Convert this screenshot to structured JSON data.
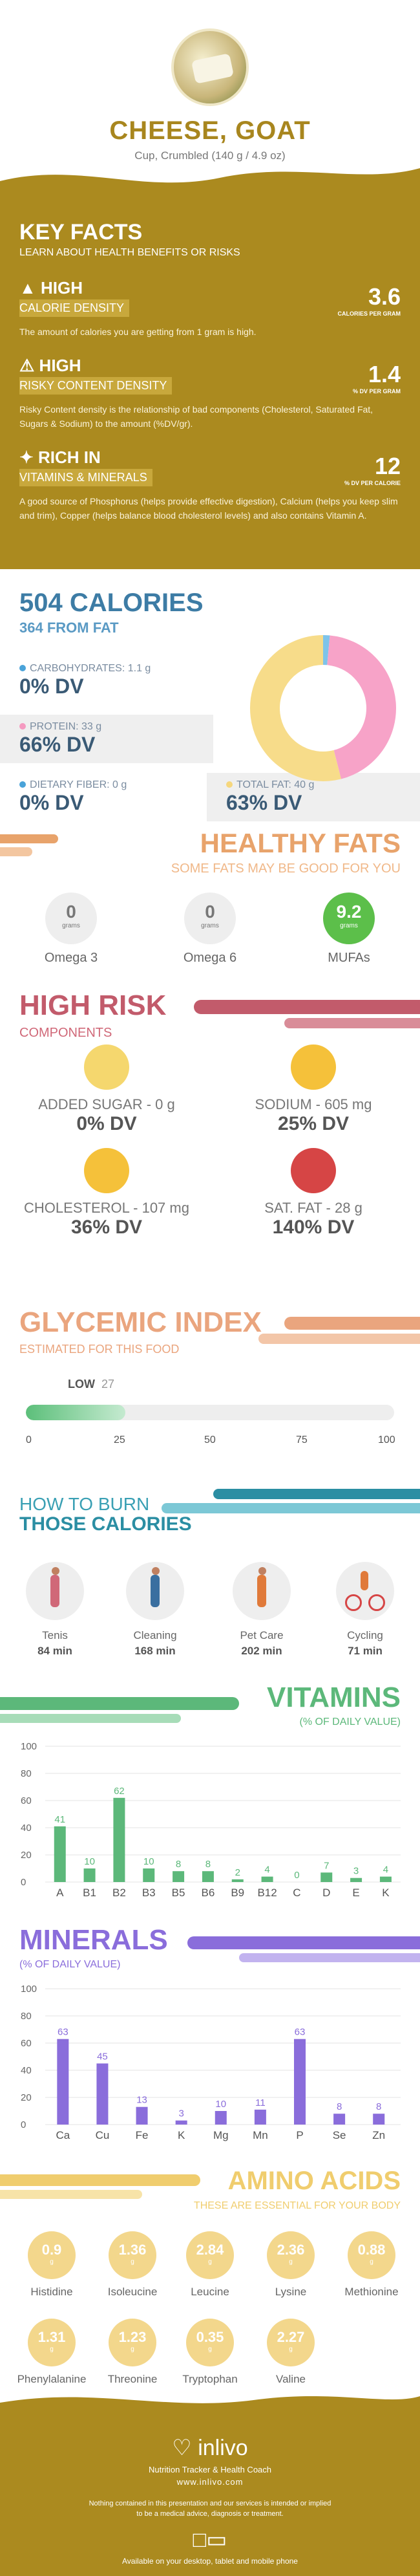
{
  "header": {
    "title": "CHEESE, GOAT",
    "serving": "Cup, Crumbled (140 g / 4.9 oz)"
  },
  "key_facts": {
    "title": "KEY FACTS",
    "subtitle": "LEARN ABOUT HEALTH BENEFITS OR RISKS",
    "items": [
      {
        "level": "HIGH",
        "label": "CALORIE DENSITY",
        "value": "3.6",
        "unit": "CALORIES PER GRAM",
        "icon": "flame-icon",
        "desc": "The amount of calories you are getting from 1 gram is high."
      },
      {
        "level": "HIGH",
        "label": "RISKY CONTENT DENSITY",
        "value": "1.4",
        "unit": "% DV PER GRAM",
        "icon": "warning-icon",
        "desc": "Risky Content density is the relationship of bad components (Cholesterol, Saturated Fat, Sugars & Sodium) to the amount (%DV/gr)."
      },
      {
        "level": "RICH  IN",
        "label": "VITAMINS & MINERALS",
        "value": "12",
        "unit": "% DV PER CALORIE",
        "icon": "leaf-icon",
        "desc": "A good source of Phosphorus (helps provide effective digestion), Calcium (helps you keep slim and trim), Copper (helps balance blood cholesterol levels) and also contains Vitamin A."
      }
    ]
  },
  "calories": {
    "total": "504 CALORIES",
    "from_fat": "364 FROM FAT",
    "macros": [
      {
        "label": "CARBOHYDRATES: 1.1 g",
        "dv": "0% DV",
        "color": "#4aa3d9"
      },
      {
        "label": "PROTEIN: 33 g",
        "dv": "66% DV",
        "color": "#f59ac0"
      },
      {
        "label": "DIETARY FIBER: 0 g",
        "dv": "0% DV",
        "color": "#4aa3d9"
      },
      {
        "label": "TOTAL FAT: 40 g",
        "dv": "63% DV",
        "color": "#f6d77d"
      }
    ],
    "donut": [
      {
        "name": "carbohydrates",
        "value": 1.1,
        "color": "#7ec3ea"
      },
      {
        "name": "protein",
        "value": 33,
        "color": "#f7a3c8"
      },
      {
        "name": "fat",
        "value": 40,
        "color": "#f7dc8a"
      }
    ]
  },
  "healthy_fats": {
    "title": "HEALTHY FATS",
    "subtitle": "SOME FATS MAY BE GOOD FOR YOU",
    "unit": "grams",
    "items": [
      {
        "name": "Omega 3",
        "value": "0",
        "active": false
      },
      {
        "name": "Omega 6",
        "value": "0",
        "active": false
      },
      {
        "name": "MUFAs",
        "value": "9.2",
        "active": true
      }
    ]
  },
  "high_risk": {
    "title": "HIGH RISK",
    "subtitle": "COMPONENTS",
    "items": [
      {
        "label": "ADDED SUGAR - 0 g",
        "dv": "0% DV",
        "color": "#f5d76e",
        "icon": "smiley-happy-icon"
      },
      {
        "label": "SODIUM - 605 mg",
        "dv": "25% DV",
        "color": "#f5c13a",
        "icon": "smiley-neutral-icon"
      },
      {
        "label": "CHOLESTEROL - 107 mg",
        "dv": "36% DV",
        "color": "#f5c13a",
        "icon": "smiley-neutral-icon"
      },
      {
        "label": "SAT. FAT - 28 g",
        "dv": "140% DV",
        "color": "#d64545",
        "icon": "smiley-sad-icon"
      }
    ]
  },
  "glycemic": {
    "title": "GLYCEMIC INDEX",
    "subtitle": "ESTIMATED FOR THIS FOOD",
    "level": "LOW",
    "value": "27",
    "fraction": 0.27,
    "ticks": [
      "0",
      "25",
      "50",
      "75",
      "100"
    ]
  },
  "burn": {
    "title_1": "HOW TO BURN",
    "title_2": "THOSE CALORIES",
    "activities": [
      {
        "name": "Tenis",
        "minutes": "84 min",
        "icon": "tennis-icon"
      },
      {
        "name": "Cleaning",
        "minutes": "168 min",
        "icon": "cleaning-icon"
      },
      {
        "name": "Pet Care",
        "minutes": "202 min",
        "icon": "pet-care-icon"
      },
      {
        "name": "Cycling",
        "minutes": "71 min",
        "icon": "cycling-icon"
      }
    ]
  },
  "vitamins": {
    "title": "VITAMINS",
    "subtitle": "(% OF DAILY VALUE)"
  },
  "minerals": {
    "title": "MINERALS",
    "subtitle": "(% OF DAILY VALUE)"
  },
  "chart_data": [
    {
      "type": "bar",
      "title": "VITAMINS",
      "subtitle": "(% OF DAILY VALUE)",
      "categories": [
        "A",
        "B1",
        "B2",
        "B3",
        "B5",
        "B6",
        "B9",
        "B12",
        "C",
        "D",
        "E",
        "K"
      ],
      "values": [
        41,
        10,
        62,
        10,
        8,
        8,
        2,
        4,
        0,
        7,
        3,
        4
      ],
      "ylim": [
        0,
        100
      ],
      "yticks": [
        0,
        20,
        40,
        60,
        80,
        100
      ],
      "color": "#5cb87a",
      "grid": true
    },
    {
      "type": "bar",
      "title": "MINERALS",
      "subtitle": "(% OF DAILY VALUE)",
      "categories": [
        "Ca",
        "Cu",
        "Fe",
        "K",
        "Mg",
        "Mn",
        "P",
        "Se",
        "Zn"
      ],
      "values": [
        63,
        45,
        13,
        3,
        10,
        11,
        63,
        8,
        8
      ],
      "ylim": [
        0,
        100
      ],
      "yticks": [
        0,
        20,
        40,
        60,
        80,
        100
      ],
      "color": "#8a6ddb",
      "grid": true
    }
  ],
  "amino_acids": {
    "title": "AMINO ACIDS",
    "subtitle": "THESE ARE ESSENTIAL FOR YOUR BODY",
    "unit": "g",
    "items": [
      {
        "name": "Histidine",
        "value": "0.9"
      },
      {
        "name": "Isoleucine",
        "value": "1.36"
      },
      {
        "name": "Leucine",
        "value": "2.84"
      },
      {
        "name": "Lysine",
        "value": "2.36"
      },
      {
        "name": "Methionine",
        "value": "0.88"
      },
      {
        "name": "Phenylalanine",
        "value": "1.31"
      },
      {
        "name": "Threonine",
        "value": "1.23"
      },
      {
        "name": "Tryptophan",
        "value": "0.35"
      },
      {
        "name": "Valine",
        "value": "2.27"
      }
    ]
  },
  "footer": {
    "brand": "inlivo",
    "tagline": "Nutrition Tracker & Health Coach",
    "url": "www.inlivo.com",
    "disclaimer": "Nothing contained in this presentation and our services is intended or implied to be a medical advice, diagnosis or treatment.",
    "availability": "Available on your desktop, tablet and mobile phone"
  }
}
